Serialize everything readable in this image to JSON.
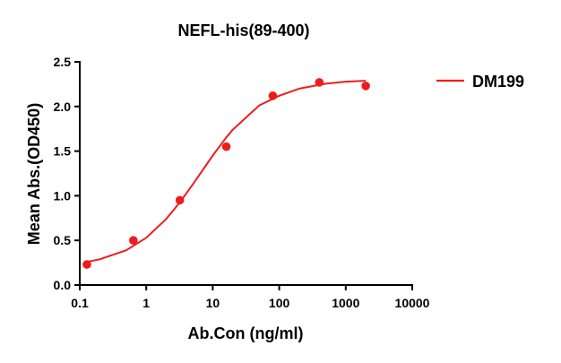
{
  "chart_data": {
    "type": "scatter",
    "title": "NEFL-his(89-400)",
    "xlabel": "Ab.Con (ng/ml)",
    "ylabel": "Mean Abs.(OD450)",
    "xscale": "log",
    "xlim": [
      0.1,
      10000
    ],
    "ylim": [
      0,
      2.5
    ],
    "xticks": [
      0.1,
      1,
      10,
      100,
      1000,
      10000
    ],
    "xtick_labels": [
      "0.1",
      "1",
      "10",
      "100",
      "1000",
      "10000"
    ],
    "yticks": [
      0,
      0.5,
      1,
      1.5,
      2,
      2.5
    ],
    "ytick_labels": [
      "0.0",
      "0.5",
      "1.0",
      "1.5",
      "2.0",
      "2.5"
    ],
    "grid": false,
    "legend_position": "right",
    "series": [
      {
        "name": "DM199",
        "color": "#ee1c1c",
        "x": [
          0.128,
          0.64,
          3.2,
          16,
          80,
          400,
          2000
        ],
        "y": [
          0.23,
          0.5,
          0.95,
          1.55,
          2.12,
          2.27,
          2.23
        ],
        "fit_curve": {
          "x": [
            0.128,
            0.2,
            0.5,
            1,
            2,
            3.2,
            5,
            10,
            16,
            20,
            50,
            100,
            200,
            500,
            1000,
            2000
          ],
          "y": [
            0.259,
            0.288,
            0.39,
            0.529,
            0.74,
            0.926,
            1.127,
            1.451,
            1.654,
            1.74,
            2.012,
            2.12,
            2.2,
            2.255,
            2.278,
            2.288
          ]
        }
      }
    ]
  }
}
